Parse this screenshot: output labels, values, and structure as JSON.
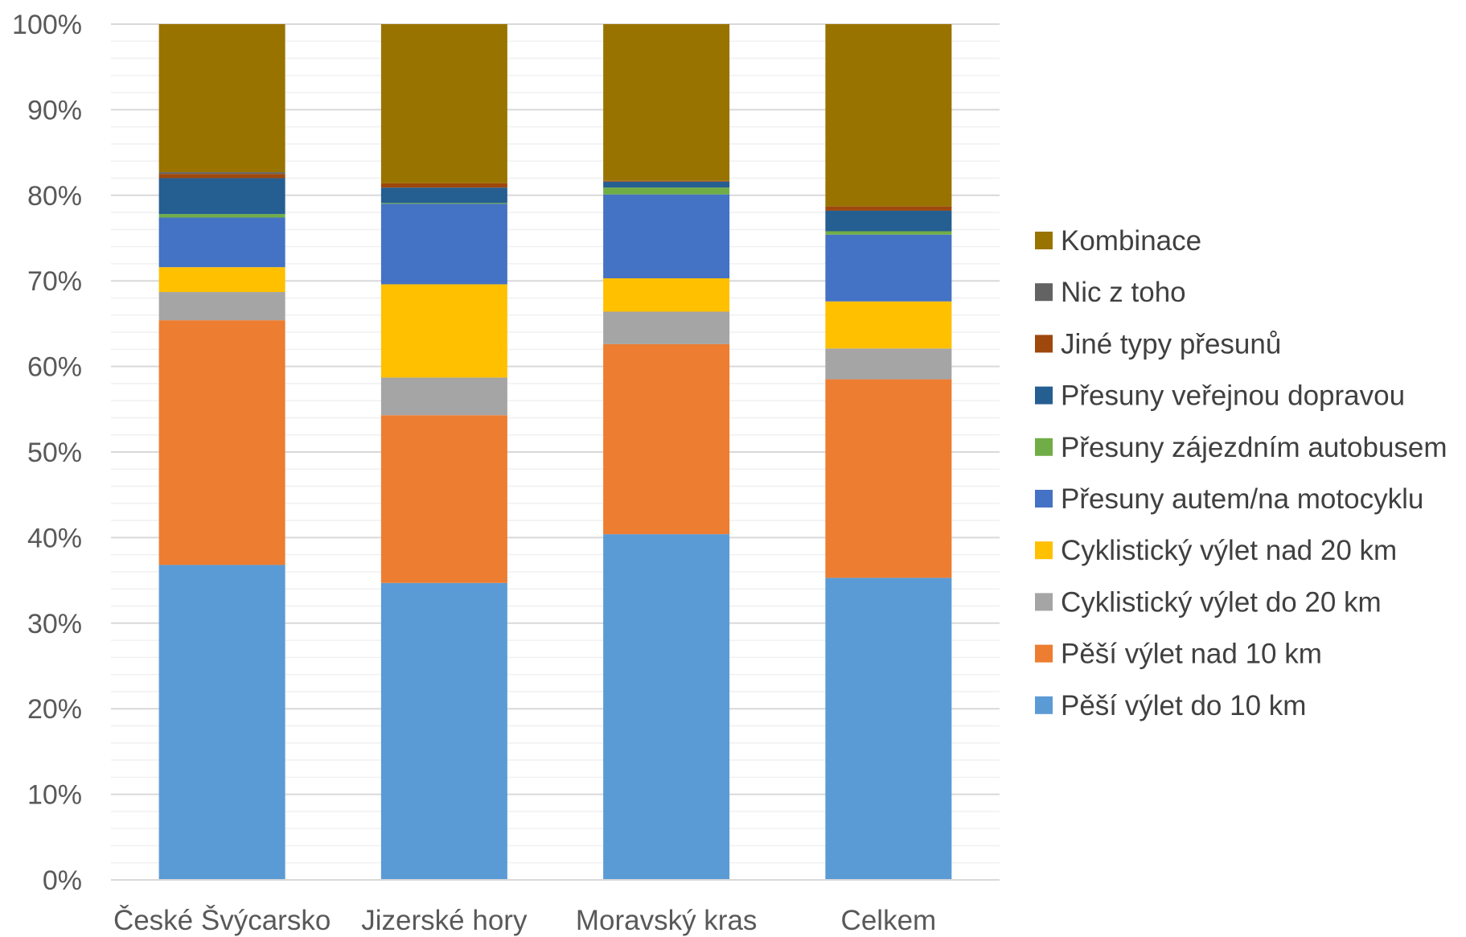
{
  "chart_data": {
    "type": "bar",
    "stacked": true,
    "percent": true,
    "categories": [
      "České Švýcarsko",
      "Jizerské hory",
      "Moravský kras",
      "Celkem"
    ],
    "ylim": [
      0,
      100
    ],
    "yticks": [
      0,
      10,
      20,
      30,
      40,
      50,
      60,
      70,
      80,
      90,
      100
    ],
    "ytick_labels": [
      "0%",
      "10%",
      "20%",
      "30%",
      "40%",
      "50%",
      "60%",
      "70%",
      "80%",
      "90%",
      "100%"
    ],
    "grid": true,
    "legend_position": "right",
    "series": [
      {
        "name": "Pěší výlet do 10 km",
        "color": "#5B9BD5",
        "values": [
          36.8,
          34.7,
          40.4,
          35.3
        ]
      },
      {
        "name": "Pěší výlet nad 10 km",
        "color": "#ED7D31",
        "values": [
          28.6,
          19.6,
          22.2,
          23.2
        ]
      },
      {
        "name": "Cyklistický výlet do 20 km",
        "color": "#A5A5A5",
        "values": [
          3.3,
          4.4,
          3.8,
          3.6
        ]
      },
      {
        "name": "Cyklistický výlet nad 20 km",
        "color": "#FFC000",
        "values": [
          2.9,
          10.9,
          3.9,
          5.5
        ]
      },
      {
        "name": "Přesuny autem/na motocyklu",
        "color": "#4472C4",
        "values": [
          5.8,
          9.4,
          9.8,
          7.8
        ]
      },
      {
        "name": "Přesuny zájezdním autobusem",
        "color": "#70AD47",
        "values": [
          0.4,
          0.1,
          0.8,
          0.4
        ]
      },
      {
        "name": "Přesuny veřejnou dopravou",
        "color": "#255E91",
        "values": [
          4.2,
          1.8,
          0.7,
          2.4
        ]
      },
      {
        "name": "Jiné typy přesunů",
        "color": "#9E480E",
        "values": [
          0.5,
          0.5,
          0.1,
          0.5
        ]
      },
      {
        "name": "Nic z toho",
        "color": "#636363",
        "values": [
          0.2,
          0.0,
          0.0,
          0.0
        ]
      },
      {
        "name": "Kombinace",
        "color": "#997300",
        "values": [
          17.3,
          18.6,
          18.3,
          21.3
        ]
      }
    ]
  }
}
